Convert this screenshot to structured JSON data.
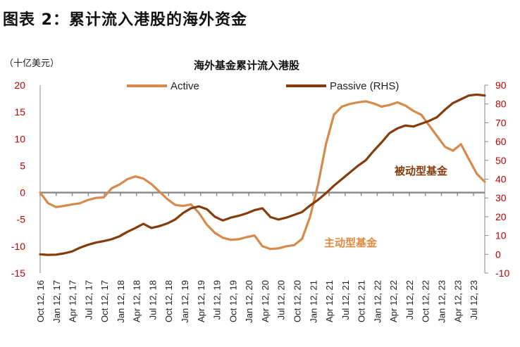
{
  "figure_title": "图表 2：累计流入港股的海外资金",
  "chart_data": {
    "type": "line",
    "title": "海外基金累计流入港股",
    "left_unit": "（十亿美元）",
    "x_labels": [
      "Oct 12, 16",
      "Jan 12, 17",
      "Apr 12, 17",
      "Jul 12, 17",
      "Oct 12, 17",
      "Jan 12, 18",
      "Apr 12, 18",
      "Jul 12, 18",
      "Oct 12, 18",
      "Jan 12, 19",
      "Apr 12, 19",
      "Jul 12, 19",
      "Oct 12, 19",
      "Jan 12, 20",
      "Apr 12, 20",
      "Jul 12, 20",
      "Oct 12, 20",
      "Jan 12, 21",
      "Apr 12, 21",
      "Jul 12, 21",
      "Oct 12, 21",
      "Jan 12, 22",
      "Apr 12, 22",
      "Jul 12, 22",
      "Oct 12, 22",
      "Jan 12, 23",
      "Apr 12, 23",
      "Jul 12, 23"
    ],
    "y_left": {
      "min": -15,
      "max": 20,
      "ticks": [
        20,
        15,
        10,
        5,
        0,
        -5,
        -10,
        -15
      ],
      "zero_line": 0
    },
    "y_right": {
      "min": -10,
      "max": 90,
      "ticks": [
        90,
        80,
        70,
        60,
        50,
        40,
        30,
        20,
        10,
        0,
        -10
      ]
    },
    "series": [
      {
        "name": "Active",
        "axis": "left",
        "color": "#d68a4c",
        "annotation": "主动型基金",
        "annotation_color": "#e0883e",
        "values": [
          0.0,
          -2.0,
          -2.7,
          -2.5,
          -2.2,
          -2.0,
          -1.4,
          -1.0,
          -0.9,
          0.8,
          1.5,
          2.5,
          3.0,
          2.6,
          1.6,
          0.2,
          -1.2,
          -2.3,
          -2.5,
          -2.2,
          -3.8,
          -6.0,
          -7.5,
          -8.4,
          -8.8,
          -8.7,
          -8.3,
          -8.0,
          -10.0,
          -10.5,
          -10.4,
          -10.0,
          -9.8,
          -8.6,
          -4.5,
          1.5,
          9.0,
          14.5,
          16.0,
          16.5,
          16.8,
          17.0,
          16.6,
          16.0,
          16.3,
          16.8,
          16.2,
          15.2,
          14.5,
          12.5,
          10.5,
          8.5,
          7.8,
          9.0,
          6.2,
          3.5,
          2.0
        ]
      },
      {
        "name": "Passive (RHS)",
        "axis": "right",
        "color": "#843c0c",
        "annotation": "被动型基金",
        "annotation_color": "#843c0c",
        "values": [
          0.0,
          -0.3,
          -0.2,
          0.5,
          1.5,
          3.5,
          5.0,
          6.2,
          7.0,
          8.0,
          9.6,
          12.0,
          14.0,
          16.2,
          14.0,
          15.0,
          16.4,
          18.5,
          22.0,
          24.5,
          25.5,
          24.0,
          20.0,
          18.0,
          19.5,
          20.5,
          21.8,
          23.5,
          24.5,
          19.8,
          18.5,
          19.5,
          21.0,
          22.5,
          26.0,
          29.0,
          32.5,
          36.5,
          40.0,
          43.5,
          47.0,
          50.0,
          55.0,
          59.5,
          64.5,
          67.0,
          68.5,
          68.0,
          69.5,
          71.0,
          73.0,
          77.0,
          80.5,
          82.5,
          84.5,
          85.0,
          84.5
        ]
      }
    ]
  }
}
